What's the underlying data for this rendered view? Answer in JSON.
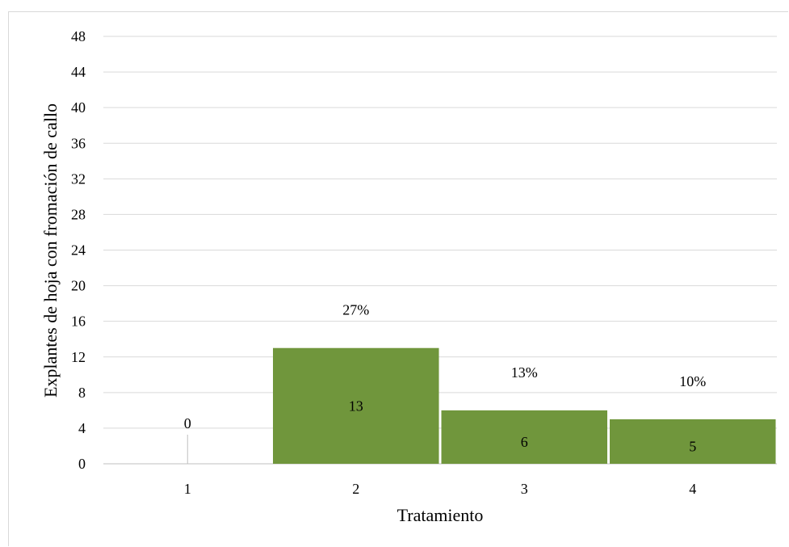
{
  "chart_data": {
    "type": "bar",
    "categories": [
      "1",
      "2",
      "3",
      "4"
    ],
    "values": [
      0,
      13,
      6,
      5
    ],
    "value_labels": [
      "0",
      "13",
      "6",
      "5"
    ],
    "percent_labels": [
      "",
      "27%",
      "13%",
      "10%"
    ],
    "xlabel": "Tratamiento",
    "ylabel": "Explantes de hoja con fromación de callo",
    "ylim": [
      0,
      48
    ],
    "yticks": [
      0,
      4,
      8,
      12,
      16,
      20,
      24,
      28,
      32,
      36,
      40,
      44,
      48
    ],
    "grid": true,
    "bar_color": "#70963c",
    "gridline_color": "#d9d9d9",
    "axis_color": "#bfbfbf"
  }
}
